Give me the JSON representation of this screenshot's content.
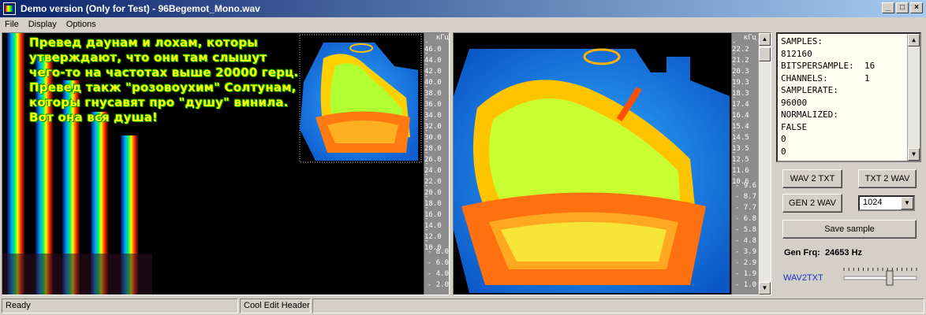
{
  "window": {
    "title": "Demo version (Only for Test) - 96Begemot_Mono.wav",
    "minimize": "_",
    "maximize": "□",
    "close": "×"
  },
  "menu": [
    "File",
    "Display",
    "Options"
  ],
  "left_panel": {
    "freq_unit": "кГц",
    "freq_labels": [
      "46.0",
      "44.0",
      "42.0",
      "40.0",
      "38.0",
      "36.0",
      "34.0",
      "32.0",
      "30.0",
      "28.0",
      "26.0",
      "24.0",
      "22.0",
      "20.0",
      "18.0",
      "16.0",
      "14.0",
      "12.0",
      "10.0",
      "8.0",
      "6.0",
      "4.0",
      "2.0"
    ],
    "overlay_text": "Превед даунам и лохам, которы утверждают, что они там слышут чего-то на частотах выше 20000 герц. Превед такж \"розовоухим\" Солтунам, которы гнусавят про \"душу\" винила. Вот она вся душа!"
  },
  "right_panel": {
    "freq_unit": "кГц",
    "freq_labels": [
      "22.2",
      "21.2",
      "20.3",
      "19.3",
      "18.3",
      "17.4",
      "16.4",
      "15.4",
      "14.5",
      "13.5",
      "12.5",
      "11.6",
      "10.6",
      "9.6",
      "8.7",
      "7.7",
      "6.8",
      "5.8",
      "4.8",
      "3.9",
      "2.9",
      "1.9",
      "1.0"
    ]
  },
  "info_lines": [
    "SAMPLES:",
    "812160",
    "BITSPERSAMPLE:  16",
    "CHANNELS:       1",
    "SAMPLERATE:",
    "96000",
    "NORMALIZED:",
    "FALSE",
    "0",
    "0"
  ],
  "buttons": {
    "wav2txt": "WAV 2 TXT",
    "txt2wav": "TXT 2 WAV",
    "gen2wav": "GEN 2 WAV",
    "save": "Save sample"
  },
  "fft_size": "1024",
  "gen_frq": "Gen Frq:  24653 Hz",
  "wav2txt_link": "WAV2TXT",
  "slider_level": 0.63,
  "status": {
    "ready": "Ready",
    "header": "Cool Edit Header",
    "extra": ""
  }
}
